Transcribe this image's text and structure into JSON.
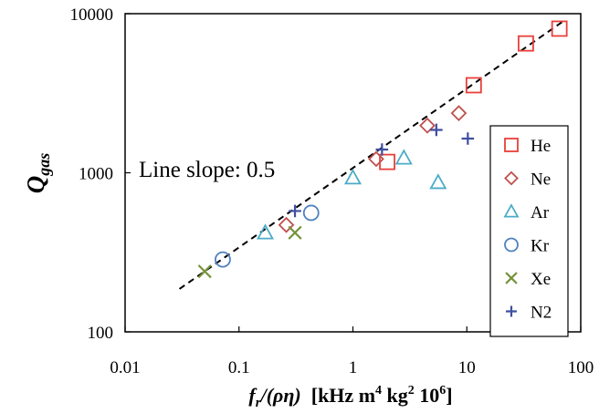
{
  "chart_data": {
    "type": "scatter",
    "xscale": "log",
    "yscale": "log",
    "xlim": [
      0.01,
      100
    ],
    "ylim": [
      100,
      10000
    ],
    "grid": false,
    "legend_position": "right",
    "x_ticks": [
      {
        "value": 0.01,
        "label": "0.01"
      },
      {
        "value": 0.1,
        "label": "0.1"
      },
      {
        "value": 1,
        "label": "1"
      },
      {
        "value": 10,
        "label": "10"
      },
      {
        "value": 100,
        "label": "100"
      }
    ],
    "y_ticks": [
      {
        "value": 100,
        "label": "100"
      },
      {
        "value": 1000,
        "label": "1000"
      },
      {
        "value": 10000,
        "label": "10000"
      }
    ],
    "xlabel": {
      "main": "f",
      "sub": "r",
      "rest": "/(ρη)  [kHz m",
      "sup1": "4",
      "mid": " kg",
      "sup2": "2",
      "end": " 10",
      "sup3": "6",
      "close": "]"
    },
    "ylabel": {
      "main": "Q",
      "sub": "gas"
    },
    "annotation": "Line slope: 0.5",
    "fit_line": {
      "slope": 0.5,
      "x": [
        0.03,
        70
      ],
      "y": [
        186,
        8950
      ],
      "style": "dashed",
      "color": "#000000"
    },
    "series": [
      {
        "name": "He",
        "marker": "square",
        "color": "#e8403a",
        "points": [
          [
            2.0,
            1170
          ],
          [
            11.5,
            3550
          ],
          [
            33,
            6500
          ],
          [
            65,
            8050
          ]
        ]
      },
      {
        "name": "Ne",
        "marker": "diamond",
        "color": "#c0504d",
        "points": [
          [
            0.26,
            470
          ],
          [
            1.6,
            1220
          ],
          [
            4.5,
            1980
          ],
          [
            8.5,
            2370
          ]
        ]
      },
      {
        "name": "Ar",
        "marker": "triangle",
        "color": "#4bacc6",
        "points": [
          [
            0.17,
            420
          ],
          [
            1.0,
            930
          ],
          [
            2.8,
            1240
          ],
          [
            5.6,
            870
          ]
        ]
      },
      {
        "name": "Kr",
        "marker": "circle",
        "color": "#4f81bd",
        "points": [
          [
            0.072,
            285
          ],
          [
            0.43,
            560
          ]
        ]
      },
      {
        "name": "Xe",
        "marker": "x",
        "color": "#77933c",
        "points": [
          [
            0.05,
            240
          ],
          [
            0.31,
            420
          ]
        ]
      },
      {
        "name": "N2",
        "marker": "plus",
        "color": "#3f4fa0",
        "points": [
          [
            0.31,
            575
          ],
          [
            1.8,
            1400
          ],
          [
            5.4,
            1860
          ],
          [
            10.2,
            1640
          ]
        ]
      }
    ]
  }
}
